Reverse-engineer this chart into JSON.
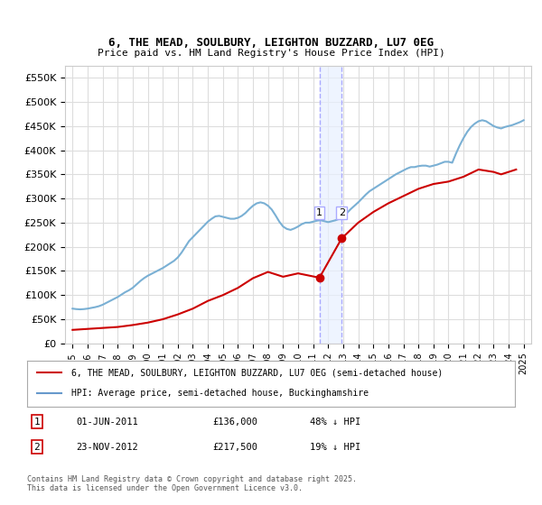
{
  "title": "6, THE MEAD, SOULBURY, LEIGHTON BUZZARD, LU7 0EG",
  "subtitle": "Price paid vs. HM Land Registry's House Price Index (HPI)",
  "legend_entries": [
    "6, THE MEAD, SOULBURY, LEIGHTON BUZZARD, LU7 0EG (semi-detached house)",
    "HPI: Average price, semi-detached house, Buckinghamshire"
  ],
  "legend_colors": [
    "#cc0000",
    "#6699cc"
  ],
  "annotations": [
    {
      "label": "1",
      "date_x": 2011.42,
      "price": 136000,
      "color": "#cc0000"
    },
    {
      "label": "2",
      "date_x": 2012.9,
      "price": 217500,
      "color": "#cc0000"
    }
  ],
  "table_rows": [
    {
      "num": "1",
      "date": "01-JUN-2011",
      "price": "£136,000",
      "note": "48% ↓ HPI"
    },
    {
      "num": "2",
      "date": "23-NOV-2012",
      "price": "£217,500",
      "note": "19% ↓ HPI"
    }
  ],
  "footer": "Contains HM Land Registry data © Crown copyright and database right 2025.\nThis data is licensed under the Open Government Licence v3.0.",
  "ylim": [
    0,
    575000
  ],
  "xlim": [
    1994.5,
    2025.5
  ],
  "yticks": [
    0,
    50000,
    100000,
    150000,
    200000,
    250000,
    300000,
    350000,
    400000,
    450000,
    500000,
    550000
  ],
  "ytick_labels": [
    "£0",
    "£50K",
    "£100K",
    "£150K",
    "£200K",
    "£250K",
    "£300K",
    "£350K",
    "£400K",
    "£450K",
    "£500K",
    "£550K"
  ],
  "xticks": [
    1995,
    1996,
    1997,
    1998,
    1999,
    2000,
    2001,
    2002,
    2003,
    2004,
    2005,
    2006,
    2007,
    2008,
    2009,
    2010,
    2011,
    2012,
    2013,
    2014,
    2015,
    2016,
    2017,
    2018,
    2019,
    2020,
    2021,
    2022,
    2023,
    2024,
    2025
  ],
  "background_color": "#ffffff",
  "plot_bg_color": "#ffffff",
  "grid_color": "#dddddd",
  "shade_x1": 2011.42,
  "shade_x2": 2012.9,
  "hpi_color": "#7ab0d4",
  "price_color": "#cc0000",
  "hpi_data_x": [
    1995.0,
    1995.25,
    1995.5,
    1995.75,
    1996.0,
    1996.25,
    1996.5,
    1996.75,
    1997.0,
    1997.25,
    1997.5,
    1997.75,
    1998.0,
    1998.25,
    1998.5,
    1998.75,
    1999.0,
    1999.25,
    1999.5,
    1999.75,
    2000.0,
    2000.25,
    2000.5,
    2000.75,
    2001.0,
    2001.25,
    2001.5,
    2001.75,
    2002.0,
    2002.25,
    2002.5,
    2002.75,
    2003.0,
    2003.25,
    2003.5,
    2003.75,
    2004.0,
    2004.25,
    2004.5,
    2004.75,
    2005.0,
    2005.25,
    2005.5,
    2005.75,
    2006.0,
    2006.25,
    2006.5,
    2006.75,
    2007.0,
    2007.25,
    2007.5,
    2007.75,
    2008.0,
    2008.25,
    2008.5,
    2008.75,
    2009.0,
    2009.25,
    2009.5,
    2009.75,
    2010.0,
    2010.25,
    2010.5,
    2010.75,
    2011.0,
    2011.25,
    2011.5,
    2011.75,
    2012.0,
    2012.25,
    2012.5,
    2012.75,
    2013.0,
    2013.25,
    2013.5,
    2013.75,
    2014.0,
    2014.25,
    2014.5,
    2014.75,
    2015.0,
    2015.25,
    2015.5,
    2015.75,
    2016.0,
    2016.25,
    2016.5,
    2016.75,
    2017.0,
    2017.25,
    2017.5,
    2017.75,
    2018.0,
    2018.25,
    2018.5,
    2018.75,
    2019.0,
    2019.25,
    2019.5,
    2019.75,
    2020.0,
    2020.25,
    2020.5,
    2020.75,
    2021.0,
    2021.25,
    2021.5,
    2021.75,
    2022.0,
    2022.25,
    2022.5,
    2022.75,
    2023.0,
    2023.25,
    2023.5,
    2023.75,
    2024.0,
    2024.25,
    2024.5,
    2024.75,
    2025.0
  ],
  "hpi_data_y": [
    72000,
    71000,
    70500,
    71000,
    72000,
    73500,
    75000,
    77000,
    80000,
    84000,
    88000,
    92000,
    96000,
    101000,
    106000,
    110000,
    115000,
    122000,
    129000,
    135000,
    140000,
    144000,
    148000,
    152000,
    156000,
    161000,
    166000,
    171000,
    178000,
    188000,
    200000,
    212000,
    220000,
    228000,
    236000,
    244000,
    252000,
    258000,
    263000,
    264000,
    262000,
    260000,
    258000,
    258000,
    260000,
    264000,
    270000,
    278000,
    285000,
    290000,
    292000,
    290000,
    285000,
    277000,
    265000,
    252000,
    242000,
    237000,
    235000,
    238000,
    242000,
    247000,
    250000,
    250000,
    252000,
    254000,
    255000,
    253000,
    251000,
    253000,
    255000,
    258000,
    262000,
    270000,
    278000,
    285000,
    292000,
    300000,
    308000,
    315000,
    320000,
    325000,
    330000,
    335000,
    340000,
    345000,
    350000,
    354000,
    358000,
    362000,
    365000,
    365000,
    367000,
    368000,
    368000,
    366000,
    368000,
    370000,
    373000,
    376000,
    376000,
    374000,
    393000,
    410000,
    425000,
    438000,
    448000,
    455000,
    460000,
    462000,
    460000,
    455000,
    450000,
    447000,
    445000,
    448000,
    450000,
    452000,
    455000,
    458000,
    462000
  ],
  "price_data_x": [
    1995.0,
    1996.0,
    1997.0,
    1998.0,
    1999.0,
    2000.0,
    2001.0,
    2002.0,
    2003.0,
    2004.0,
    2005.0,
    2006.0,
    2007.0,
    2008.0,
    2009.0,
    2010.0,
    2011.42,
    2012.9,
    2014.0,
    2015.0,
    2016.0,
    2017.0,
    2018.0,
    2019.0,
    2020.0,
    2021.0,
    2022.0,
    2023.0,
    2023.5,
    2024.0,
    2024.5
  ],
  "price_data_y": [
    28000,
    30000,
    32000,
    34000,
    38000,
    43000,
    50000,
    60000,
    72000,
    88000,
    100000,
    115000,
    135000,
    148000,
    138000,
    145000,
    136000,
    217500,
    250000,
    272000,
    290000,
    305000,
    320000,
    330000,
    335000,
    345000,
    360000,
    355000,
    350000,
    355000,
    360000
  ]
}
